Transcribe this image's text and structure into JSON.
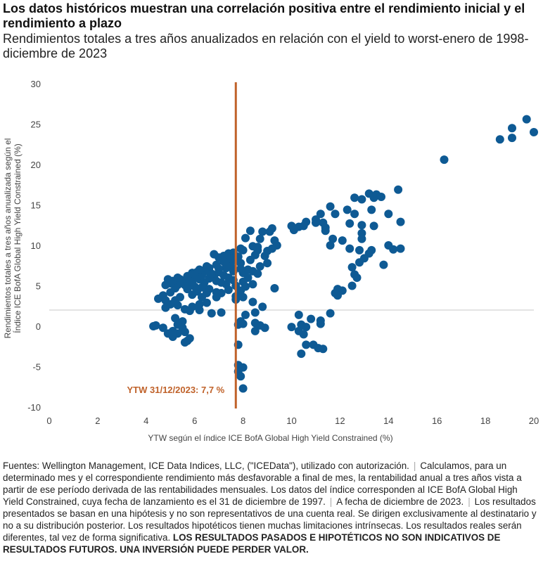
{
  "chart_data": {
    "type": "scatter",
    "title": "Los datos históricos muestran una correlación positiva entre el rendimiento inicial y el rendimiento a plazo",
    "subtitle": "Rendimientos totales a tres años anualizados en relación con el yield to worst-enero de 1998-diciembre de 2023",
    "xlabel": "YTW según el índice ICE BofA Global High Yield Constrained (%)",
    "ylabel": "Rendimientos totales a tres años anualizada según el Índice ICE BofA Global High Yield Constrained (%)",
    "xlim": [
      0,
      20
    ],
    "ylim": [
      -10,
      30
    ],
    "xticks": [
      "0",
      "2",
      "4",
      "6",
      "8",
      "10",
      "12",
      "14",
      "16",
      "18",
      "20"
    ],
    "yticks": [
      "30",
      "25",
      "20",
      "15",
      "10",
      "5",
      "0",
      "-5",
      "-10"
    ],
    "point_color": "#0e5a94",
    "vline": {
      "x": 7.7,
      "label": "YTW 31/12/2023: 7,7 %",
      "color": "#c0622a"
    },
    "hline": {
      "y": 2
    },
    "points": [
      [
        19.7,
        25.6
      ],
      [
        20.0,
        24.0
      ],
      [
        19.1,
        24.5
      ],
      [
        19.1,
        23.3
      ],
      [
        18.6,
        23.1
      ],
      [
        16.3,
        20.6
      ],
      [
        14.4,
        16.9
      ],
      [
        13.2,
        16.4
      ],
      [
        13.5,
        16.3
      ],
      [
        13.7,
        16.0
      ],
      [
        13.4,
        15.9
      ],
      [
        12.6,
        15.9
      ],
      [
        12.9,
        15.7
      ],
      [
        11.6,
        14.8
      ],
      [
        12.3,
        14.4
      ],
      [
        13.3,
        14.4
      ],
      [
        14.0,
        13.9
      ],
      [
        11.8,
        13.9
      ],
      [
        12.6,
        13.9
      ],
      [
        11.2,
        13.9
      ],
      [
        11.0,
        13.2
      ],
      [
        10.6,
        12.9
      ],
      [
        11.0,
        12.8
      ],
      [
        11.3,
        12.8
      ],
      [
        11.4,
        12.2
      ],
      [
        10.3,
        12.3
      ],
      [
        10.1,
        11.9
      ],
      [
        10.5,
        12.4
      ],
      [
        10.0,
        12.4
      ],
      [
        14.5,
        12.9
      ],
      [
        13.4,
        12.4
      ],
      [
        12.4,
        12.7
      ],
      [
        11.4,
        11.8
      ],
      [
        12.9,
        12.5
      ],
      [
        12.9,
        11.5
      ],
      [
        12.9,
        10.8
      ],
      [
        11.7,
        10.8
      ],
      [
        11.6,
        10.0
      ],
      [
        12.1,
        10.6
      ],
      [
        14.0,
        10.0
      ],
      [
        9.2,
        12.1
      ],
      [
        9.1,
        11.7
      ],
      [
        8.8,
        11.7
      ],
      [
        8.3,
        11.8
      ],
      [
        8.7,
        10.8
      ],
      [
        9.3,
        10.6
      ],
      [
        9.4,
        10.0
      ],
      [
        8.1,
        10.9
      ],
      [
        8.4,
        9.9
      ],
      [
        8.6,
        9.8
      ],
      [
        7.9,
        9.6
      ],
      [
        8.0,
        9.4
      ],
      [
        14.5,
        9.6
      ],
      [
        14.2,
        9.5
      ],
      [
        13.3,
        9.4
      ],
      [
        12.8,
        9.4
      ],
      [
        12.4,
        9.6
      ],
      [
        13.2,
        9.0
      ],
      [
        13.0,
        8.4
      ],
      [
        12.8,
        7.9
      ],
      [
        13.8,
        7.6
      ],
      [
        12.5,
        7.3
      ],
      [
        12.6,
        6.4
      ],
      [
        12.7,
        6.0
      ],
      [
        12.5,
        5.0
      ],
      [
        11.9,
        4.6
      ],
      [
        12.1,
        4.4
      ],
      [
        11.8,
        4.1
      ],
      [
        11.9,
        3.8
      ],
      [
        11.6,
        1.6
      ],
      [
        11.2,
        0.7
      ],
      [
        11.2,
        0.3
      ],
      [
        10.8,
        0.9
      ],
      [
        10.3,
        1.4
      ],
      [
        10.4,
        0.2
      ],
      [
        10.6,
        -0.1
      ],
      [
        10.0,
        -0.1
      ],
      [
        10.3,
        -0.6
      ],
      [
        10.5,
        -1.0
      ],
      [
        10.6,
        -2.3
      ],
      [
        10.9,
        -2.3
      ],
      [
        11.1,
        -2.7
      ],
      [
        11.3,
        -2.8
      ],
      [
        10.4,
        -3.4
      ],
      [
        7.6,
        9.1
      ],
      [
        7.4,
        9.0
      ],
      [
        7.6,
        8.2
      ],
      [
        7.8,
        8.6
      ],
      [
        7.2,
        8.7
      ],
      [
        7.0,
        8.5
      ],
      [
        6.8,
        8.9
      ],
      [
        7.5,
        7.9
      ],
      [
        7.5,
        7.4
      ],
      [
        7.3,
        7.2
      ],
      [
        7.0,
        7.1
      ],
      [
        6.6,
        7.2
      ],
      [
        6.5,
        6.8
      ],
      [
        6.1,
        6.7
      ],
      [
        5.9,
        6.6
      ],
      [
        7.9,
        7.1
      ],
      [
        8.0,
        6.6
      ],
      [
        8.2,
        6.0
      ],
      [
        8.6,
        6.5
      ],
      [
        8.0,
        5.5
      ],
      [
        8.4,
        5.2
      ],
      [
        8.1,
        4.9
      ],
      [
        7.9,
        4.4
      ],
      [
        7.4,
        4.5
      ],
      [
        7.1,
        4.1
      ],
      [
        6.6,
        4.6
      ],
      [
        6.3,
        4.8
      ],
      [
        6.0,
        4.9
      ],
      [
        5.6,
        5.1
      ],
      [
        5.3,
        5.1
      ],
      [
        5.1,
        5.6
      ],
      [
        4.9,
        5.8
      ],
      [
        4.8,
        5.1
      ],
      [
        5.0,
        4.2
      ],
      [
        4.7,
        3.8
      ],
      [
        4.5,
        3.4
      ],
      [
        4.8,
        3.2
      ],
      [
        4.8,
        2.3
      ],
      [
        5.3,
        2.6
      ],
      [
        5.6,
        2.1
      ],
      [
        5.8,
        1.9
      ],
      [
        6.2,
        2.0
      ],
      [
        6.7,
        1.6
      ],
      [
        7.1,
        1.7
      ],
      [
        5.2,
        1.0
      ],
      [
        5.5,
        0.6
      ],
      [
        5.3,
        0.2
      ],
      [
        5.5,
        -0.2
      ],
      [
        5.6,
        -0.7
      ],
      [
        5.3,
        -0.9
      ],
      [
        5.1,
        -0.6
      ],
      [
        4.7,
        -0.2
      ],
      [
        4.3,
        0.0
      ],
      [
        4.4,
        0.1
      ],
      [
        5.8,
        -1.5
      ],
      [
        5.7,
        -1.8
      ],
      [
        5.6,
        -2.0
      ],
      [
        5.1,
        -1.3
      ],
      [
        4.9,
        -0.9
      ],
      [
        9.3,
        4.7
      ],
      [
        8.8,
        2.4
      ],
      [
        8.4,
        3.0
      ],
      [
        7.7,
        3.7
      ],
      [
        7.7,
        3.3
      ],
      [
        8.0,
        3.6
      ],
      [
        8.5,
        1.7
      ],
      [
        8.1,
        1.4
      ],
      [
        7.9,
        0.6
      ],
      [
        7.8,
        0.2
      ],
      [
        8.0,
        0.3
      ],
      [
        8.5,
        0.4
      ],
      [
        8.7,
        0.1
      ],
      [
        8.9,
        -0.2
      ],
      [
        8.5,
        -0.6
      ],
      [
        7.8,
        -2.3
      ],
      [
        7.8,
        -4.8
      ],
      [
        8.0,
        -5.1
      ],
      [
        7.8,
        -5.6
      ],
      [
        7.9,
        -6.2
      ],
      [
        8.0,
        -7.7
      ],
      [
        6.4,
        5.4
      ],
      [
        6.2,
        5.8
      ],
      [
        5.9,
        5.3
      ],
      [
        5.7,
        5.9
      ],
      [
        5.5,
        5.4
      ],
      [
        5.4,
        5.8
      ],
      [
        5.2,
        4.7
      ],
      [
        6.8,
        6.2
      ],
      [
        6.9,
        5.6
      ],
      [
        7.1,
        5.4
      ],
      [
        7.3,
        5.2
      ],
      [
        7.4,
        6.0
      ],
      [
        6.6,
        5.9
      ],
      [
        6.7,
        6.5
      ],
      [
        7.0,
        6.7
      ],
      [
        7.2,
        6.3
      ],
      [
        7.6,
        6.8
      ],
      [
        6.3,
        6.3
      ],
      [
        6.1,
        6.0
      ],
      [
        5.8,
        5.8
      ],
      [
        7.3,
        7.6
      ],
      [
        7.5,
        8.4
      ],
      [
        6.9,
        7.6
      ],
      [
        8.3,
        8.2
      ],
      [
        8.5,
        8.8
      ],
      [
        8.9,
        8.7
      ],
      [
        9.0,
        9.3
      ],
      [
        9.2,
        9.6
      ],
      [
        8.6,
        9.4
      ],
      [
        7.2,
        8.0
      ],
      [
        6.5,
        7.4
      ],
      [
        6.2,
        7.0
      ],
      [
        6.0,
        6.4
      ],
      [
        5.7,
        6.2
      ],
      [
        5.3,
        6.0
      ],
      [
        5.0,
        5.3
      ],
      [
        6.9,
        4.2
      ],
      [
        6.5,
        4.1
      ],
      [
        6.1,
        4.3
      ],
      [
        5.7,
        4.6
      ],
      [
        5.9,
        3.9
      ],
      [
        6.3,
        3.6
      ],
      [
        5.4,
        3.6
      ],
      [
        5.2,
        3.2
      ],
      [
        6.2,
        2.7
      ],
      [
        5.9,
        2.4
      ],
      [
        6.5,
        2.9
      ],
      [
        5.0,
        2.7
      ],
      [
        6.9,
        3.6
      ],
      [
        7.7,
        5.0
      ],
      [
        7.6,
        5.7
      ],
      [
        7.9,
        7.8
      ],
      [
        8.2,
        7.0
      ],
      [
        8.4,
        6.8
      ],
      [
        8.7,
        7.4
      ],
      [
        9.0,
        7.8
      ]
    ]
  },
  "footer": {
    "p1": "Fuentes: Wellington Management, ICE Data Indices, LLC, (\"ICEData\"), utilizado con autorización.",
    "p2": "Calculamos, para un determinado mes y el correspondiente rendimiento más desfavorable a final de mes, la rentabilidad anual a tres años vista a partir de ese período derivada de las rentabilidades mensuales. Los datos del índice corresponden al ICE BofA Global High Yield Constrained, cuya fecha de lanzamiento es el 31 de diciembre de 1997.",
    "p3": "A fecha de diciembre de 2023.",
    "p4": "Los resultados presentados se basan en una hipótesis y no son representativos de una cuenta real. Se dirigen exclusivamente al destinatario y no a su distribución posterior. Los resultados hipotéticos tienen muchas limitaciones intrínsecas. Los resultados reales serán diferentes, tal vez de forma significativa.",
    "warning": "LOS RESULTADOS PASADOS E HIPOTÉTICOS NO SON INDICATIVOS DE RESULTADOS FUTUROS. UNA INVERSIÓN PUEDE PERDER VALOR."
  }
}
